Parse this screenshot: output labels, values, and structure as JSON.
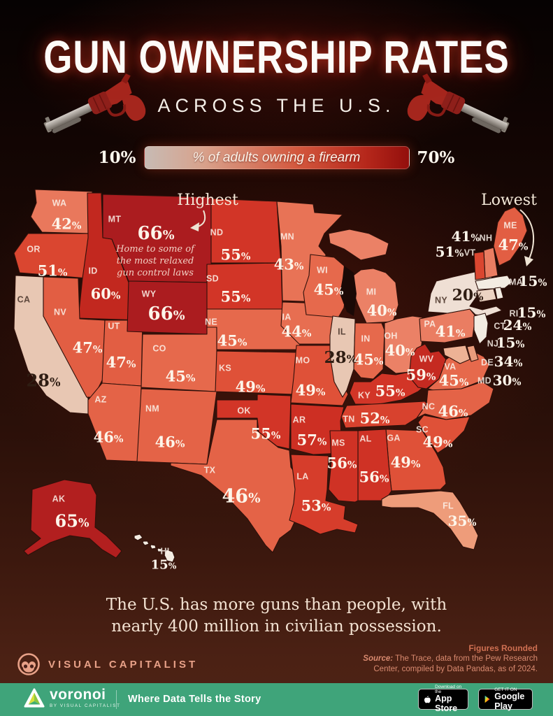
{
  "title": "GUN OWNERSHIP RATES",
  "subtitle": "ACROSS THE U.S.",
  "legend": {
    "min_label": "10%",
    "max_label": "70%",
    "bar_label": "% of adults owning a firearm"
  },
  "annotations": {
    "highest": "Highest",
    "lowest": "Lowest",
    "mt_note": [
      "Home to some of",
      "the most relaxed",
      "gun control laws"
    ]
  },
  "caption": [
    "The U.S. has more guns than people, with",
    "nearly 400 million in civilian possession."
  ],
  "footer": {
    "brand": "VISUAL CAPITALIST",
    "figures_note": "Figures Rounded",
    "source_prefix": "Source:",
    "source_line1": " The Trace, data from the Pew Research",
    "source_line2": "Center, compiled by Data Pandas, as of 2024."
  },
  "bottom_bar": {
    "logo": "voronoi",
    "logo_sub": "BY VISUAL CAPITALIST",
    "tagline": "Where Data Tells the Story",
    "appstore": {
      "line1": "Download on the",
      "line2": "App Store"
    },
    "googleplay": {
      "line1": "GET IT ON",
      "line2": "Google Play"
    }
  },
  "chart_data": {
    "type": "choropleth",
    "title": "Gun Ownership Rates Across the U.S.",
    "unit": "% of adults owning a firearm",
    "unit_symbol": "%",
    "scale": {
      "min": 10,
      "max": 70
    },
    "highest": {
      "state": "MT",
      "value": 66,
      "note": "Home to some of the most relaxed gun control laws"
    },
    "lowest": {
      "state": "MA",
      "value": 15
    },
    "states": [
      {
        "abbr": "WA",
        "value": 42
      },
      {
        "abbr": "OR",
        "value": 51
      },
      {
        "abbr": "CA",
        "value": 28
      },
      {
        "abbr": "ID",
        "value": 60
      },
      {
        "abbr": "NV",
        "value": 47
      },
      {
        "abbr": "UT",
        "value": 47
      },
      {
        "abbr": "AZ",
        "value": 46
      },
      {
        "abbr": "MT",
        "value": 66
      },
      {
        "abbr": "WY",
        "value": 66
      },
      {
        "abbr": "CO",
        "value": 45
      },
      {
        "abbr": "NM",
        "value": 46
      },
      {
        "abbr": "ND",
        "value": 55
      },
      {
        "abbr": "SD",
        "value": 55
      },
      {
        "abbr": "NE",
        "value": 45
      },
      {
        "abbr": "KS",
        "value": 49
      },
      {
        "abbr": "OK",
        "value": 55
      },
      {
        "abbr": "TX",
        "value": 46
      },
      {
        "abbr": "MN",
        "value": 43
      },
      {
        "abbr": "IA",
        "value": 44
      },
      {
        "abbr": "MO",
        "value": 49
      },
      {
        "abbr": "AR",
        "value": 57
      },
      {
        "abbr": "LA",
        "value": 53
      },
      {
        "abbr": "WI",
        "value": 45
      },
      {
        "abbr": "IL",
        "value": 28
      },
      {
        "abbr": "MI",
        "value": 40
      },
      {
        "abbr": "IN",
        "value": 45
      },
      {
        "abbr": "OH",
        "value": 40
      },
      {
        "abbr": "KY",
        "value": 55
      },
      {
        "abbr": "TN",
        "value": 52
      },
      {
        "abbr": "WV",
        "value": 59
      },
      {
        "abbr": "VA",
        "value": 45
      },
      {
        "abbr": "NC",
        "value": 46
      },
      {
        "abbr": "SC",
        "value": 49
      },
      {
        "abbr": "GA",
        "value": 49
      },
      {
        "abbr": "AL",
        "value": 56
      },
      {
        "abbr": "MS",
        "value": 56
      },
      {
        "abbr": "FL",
        "value": 35
      },
      {
        "abbr": "PA",
        "value": 41
      },
      {
        "abbr": "NY",
        "value": 20
      },
      {
        "abbr": "ME",
        "value": 47
      },
      {
        "abbr": "NH",
        "value": 41
      },
      {
        "abbr": "VT",
        "value": 51
      },
      {
        "abbr": "MA",
        "value": 15
      },
      {
        "abbr": "RI",
        "value": 15
      },
      {
        "abbr": "CT",
        "value": 24
      },
      {
        "abbr": "NJ",
        "value": 15
      },
      {
        "abbr": "DE",
        "value": 34
      },
      {
        "abbr": "MD",
        "value": 30
      },
      {
        "abbr": "AK",
        "value": 65
      },
      {
        "abbr": "HI",
        "value": 15
      }
    ]
  }
}
